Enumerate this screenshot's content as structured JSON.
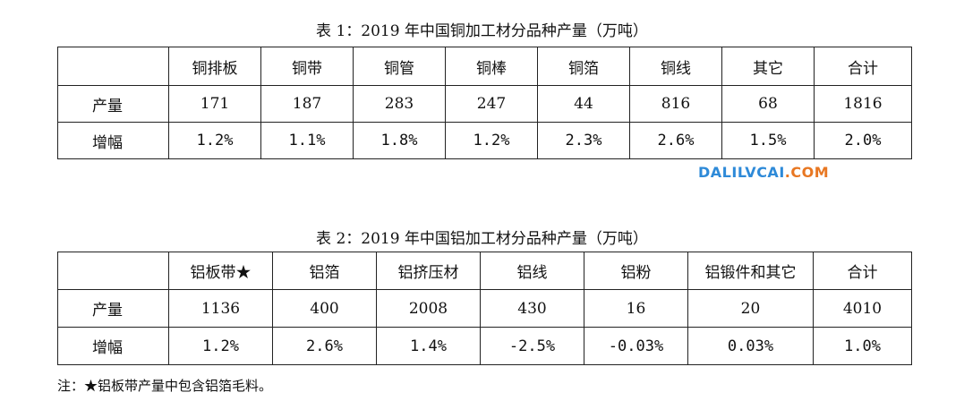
{
  "table1": {
    "caption": "表 1：2019 年中国铜加工材分品种产量（万吨）",
    "header": [
      "",
      "铜排板",
      "铜带",
      "铜管",
      "铜棒",
      "铜箔",
      "铜线",
      "其它",
      "合计"
    ],
    "rows": [
      {
        "label": "产量",
        "cells": [
          "171",
          "187",
          "283",
          "247",
          "44",
          "816",
          "68",
          "1816"
        ]
      },
      {
        "label": "增幅",
        "cells": [
          "1.2%",
          "1.1%",
          "1.8%",
          "1.2%",
          "2.3%",
          "2.6%",
          "1.5%",
          "2.0%"
        ]
      }
    ]
  },
  "watermark": {
    "main": "DALILVCAI",
    "suffix": ".COM"
  },
  "table2": {
    "caption": "表 2：2019 年中国铝加工材分品种产量（万吨）",
    "header": [
      "",
      "铝板带★",
      "铝箔",
      "铝挤压材",
      "铝线",
      "铝粉",
      "铝锻件和其它",
      "合计"
    ],
    "rows": [
      {
        "label": "产量",
        "cells": [
          "1136",
          "400",
          "2008",
          "430",
          "16",
          "20",
          "4010"
        ]
      },
      {
        "label": "增幅",
        "cells": [
          "1.2%",
          "2.6%",
          "1.4%",
          "-2.5%",
          "-0.03%",
          "0.03%",
          "1.0%"
        ]
      }
    ]
  },
  "note": "注：★铝板带产量中包含铝箔毛料。"
}
